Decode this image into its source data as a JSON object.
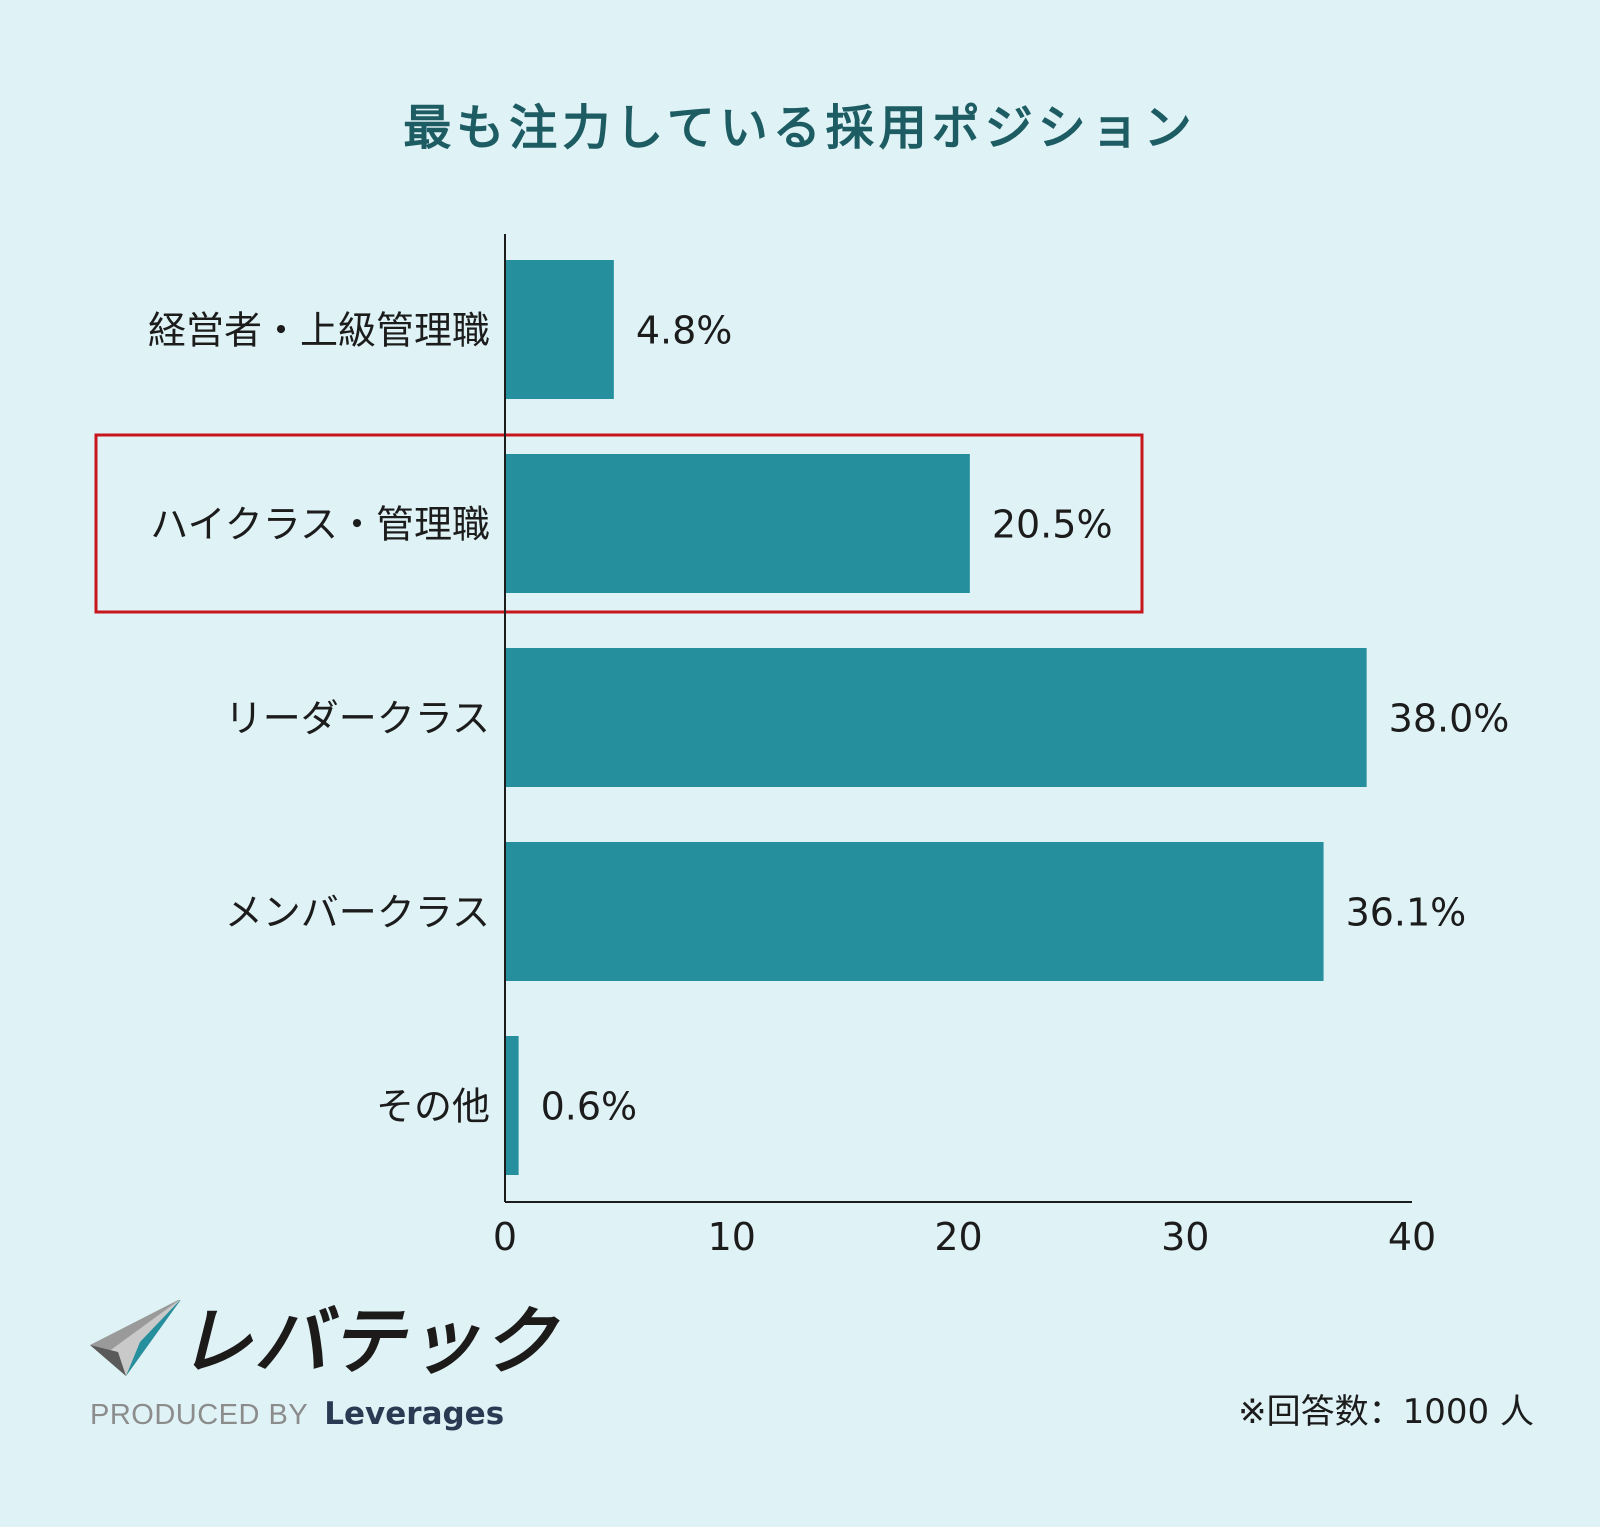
{
  "chart_data": {
    "type": "bar",
    "orientation": "horizontal",
    "title": "最も注力している採用ポジション",
    "categories": [
      "経営者・上級管理職",
      "ハイクラス・管理職",
      "リーダークラス",
      "メンバークラス",
      "その他"
    ],
    "values": [
      4.8,
      20.5,
      38.0,
      36.1,
      0.6
    ],
    "value_labels": [
      "4.8%",
      "20.5%",
      "38.0%",
      "36.1%",
      "0.6%"
    ],
    "xlim": [
      0,
      40
    ],
    "xticks": [
      "0",
      "10",
      "20",
      "30",
      "40"
    ],
    "highlighted_category": "ハイクラス・管理職",
    "grid": false,
    "colors": {
      "bar": "#268f9d",
      "highlight_box": "#c8161d",
      "title": "#1d5c62",
      "background": "#dff3f6"
    }
  },
  "brand": {
    "name": "レバテック",
    "produced_by": "PRODUCED BY",
    "company": "Leverages",
    "logo_icon": "check-mark-icon"
  },
  "footnote": "※回答数：1000 人"
}
